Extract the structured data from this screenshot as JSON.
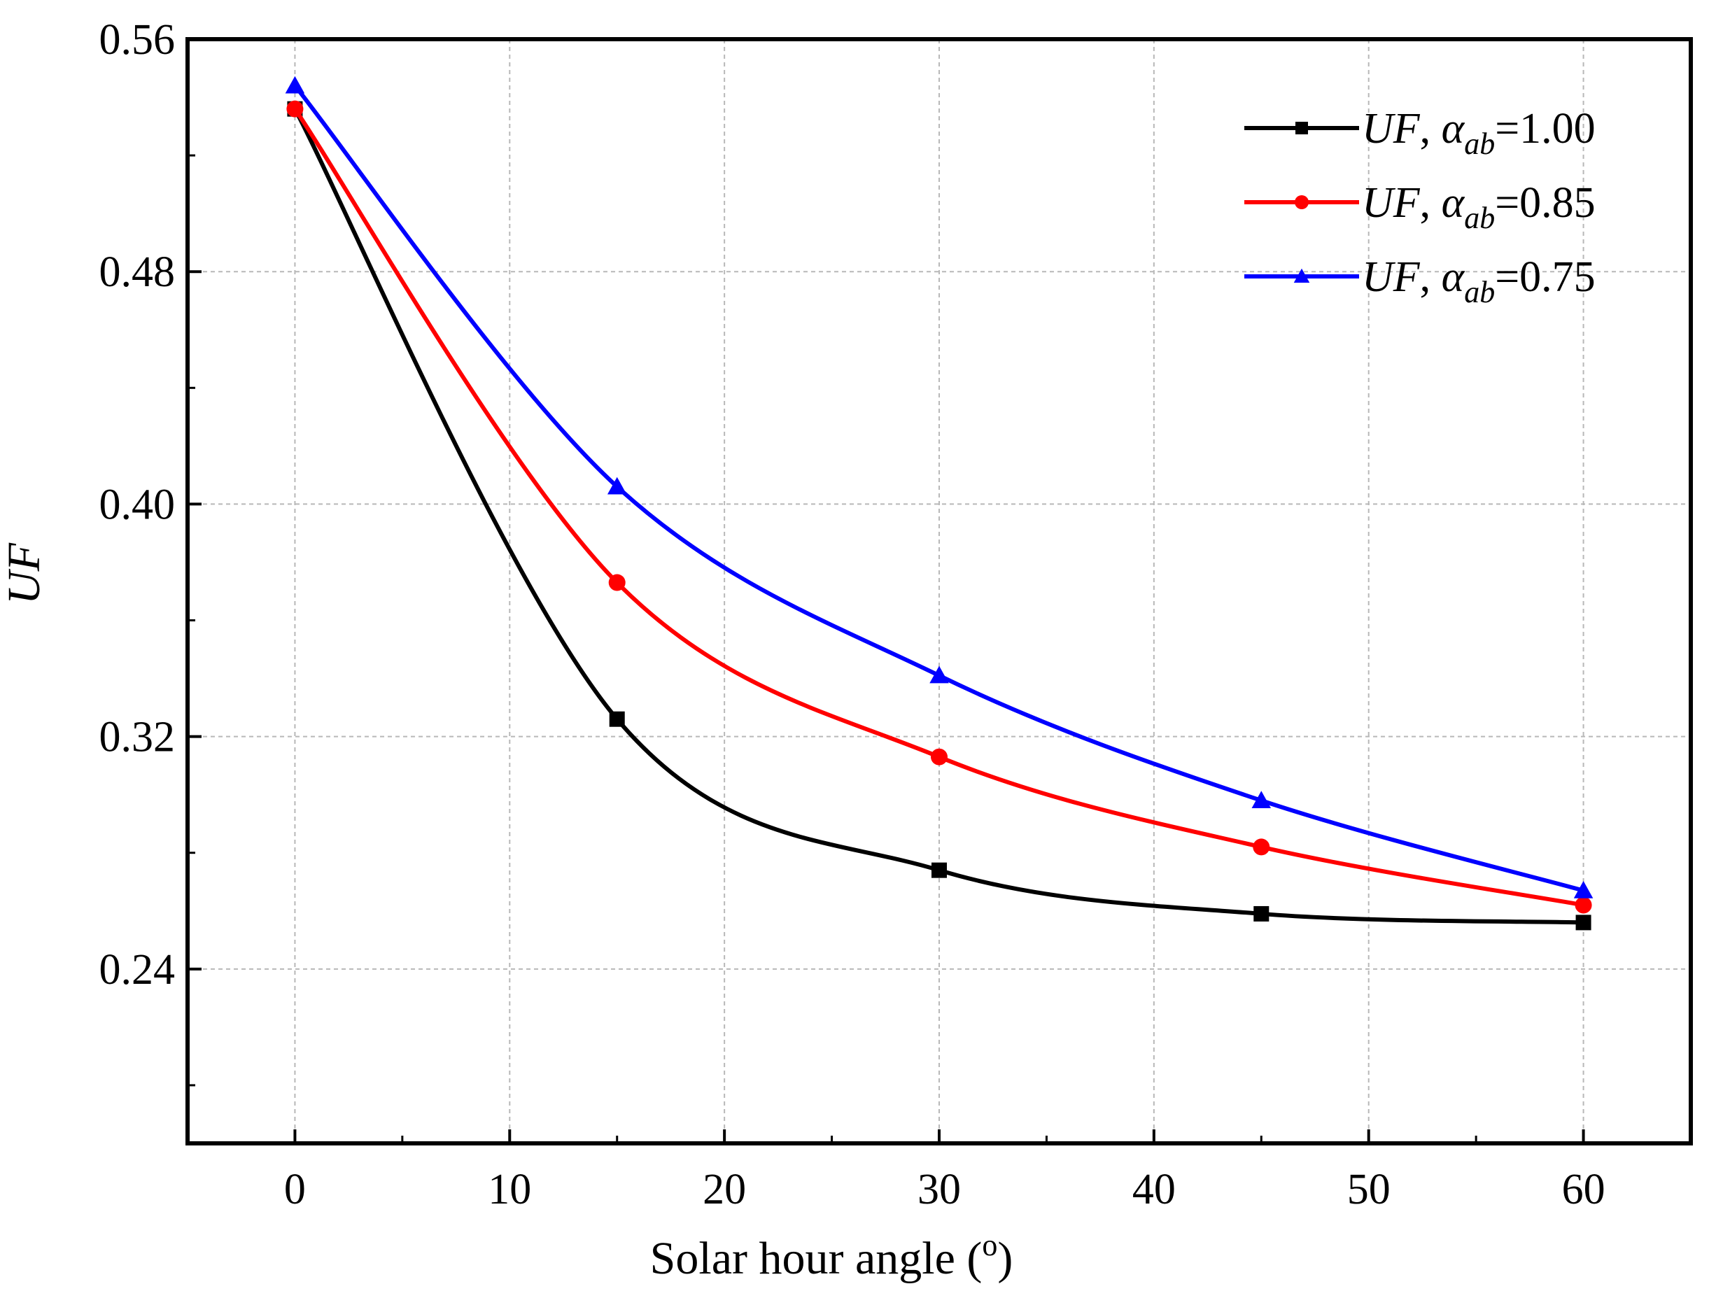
{
  "chart_data": {
    "type": "line",
    "title": "",
    "xlabel": {
      "text": "Solar hour angle (",
      "superscript": "o",
      "text_end": ")"
    },
    "ylabel": "UF",
    "xlim": [
      -5,
      65
    ],
    "ylim": [
      0.18,
      0.56
    ],
    "xticks": [
      0,
      10,
      20,
      30,
      40,
      50,
      60
    ],
    "yticks": [
      0.24,
      0.32,
      0.4,
      0.48,
      0.56
    ],
    "ytick_labels": [
      "0.24",
      "0.32",
      "0.40",
      "0.48",
      "0.56"
    ],
    "grid": true,
    "legend_position": "top-right",
    "x": [
      0,
      15,
      30,
      45,
      60
    ],
    "series": [
      {
        "name": "UF, αab=1.00",
        "label_main": "UF",
        "label_sep": ", ",
        "label_symbol": "α",
        "label_sub": "ab",
        "label_value": "=1.00",
        "color": "#000000",
        "marker": "square",
        "values": [
          0.536,
          0.326,
          0.274,
          0.259,
          0.256
        ]
      },
      {
        "name": "UF, αab=0.85",
        "label_main": "UF",
        "label_sep": ", ",
        "label_symbol": "α",
        "label_sub": "ab",
        "label_value": "=0.85",
        "color": "#ff0000",
        "marker": "circle",
        "values": [
          0.536,
          0.373,
          0.313,
          0.282,
          0.262
        ]
      },
      {
        "name": "UF, αab=0.75",
        "label_main": "UF",
        "label_sep": ", ",
        "label_symbol": "α",
        "label_sub": "ab",
        "label_value": "=0.75",
        "color": "#0000ff",
        "marker": "triangle",
        "values": [
          0.544,
          0.406,
          0.341,
          0.298,
          0.267
        ]
      }
    ]
  }
}
